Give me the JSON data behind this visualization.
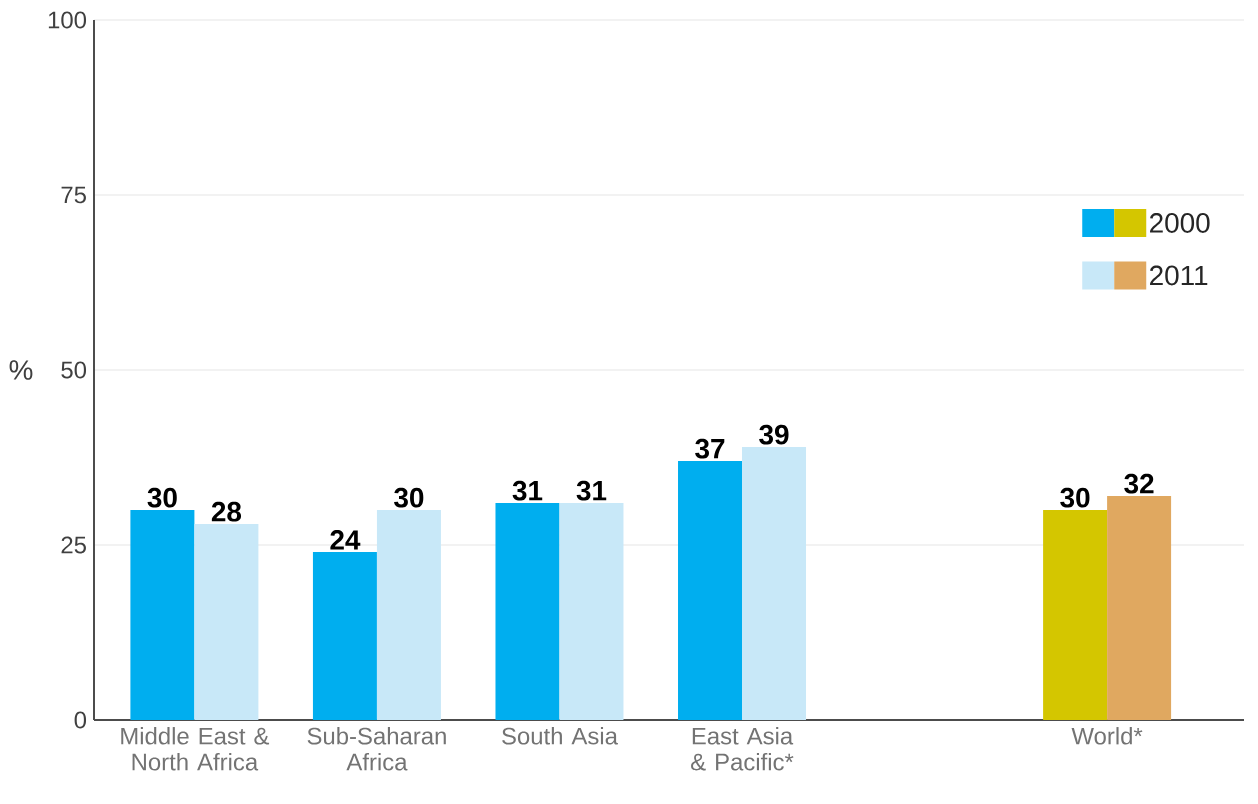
{
  "chart_data": {
    "type": "bar",
    "categories": [
      "Middle East & North Africa",
      "Sub-Saharan Africa",
      "South Asia",
      "East Asia & Pacific*",
      null,
      "World*"
    ],
    "series": [
      {
        "name": "2000",
        "color": "#00aeef",
        "colors": [
          "#00aeef",
          "#00aeef",
          "#00aeef",
          "#00aeef",
          "#00aeef",
          "#d4c600"
        ],
        "values": [
          30,
          24,
          31,
          37,
          null,
          30
        ]
      },
      {
        "name": "2011",
        "color": "#c8e8f8",
        "colors": [
          "#c8e8f8",
          "#c8e8f8",
          "#c8e8f8",
          "#c8e8f8",
          "#c8e8f8",
          "#e0a860"
        ],
        "values": [
          28,
          30,
          31,
          39,
          null,
          32
        ]
      }
    ],
    "ylabel": "%",
    "ylim": [
      0,
      100
    ],
    "yticks": [
      0,
      25,
      50,
      75,
      100
    ],
    "grid": "y",
    "legend": "right",
    "data_labels": true
  }
}
